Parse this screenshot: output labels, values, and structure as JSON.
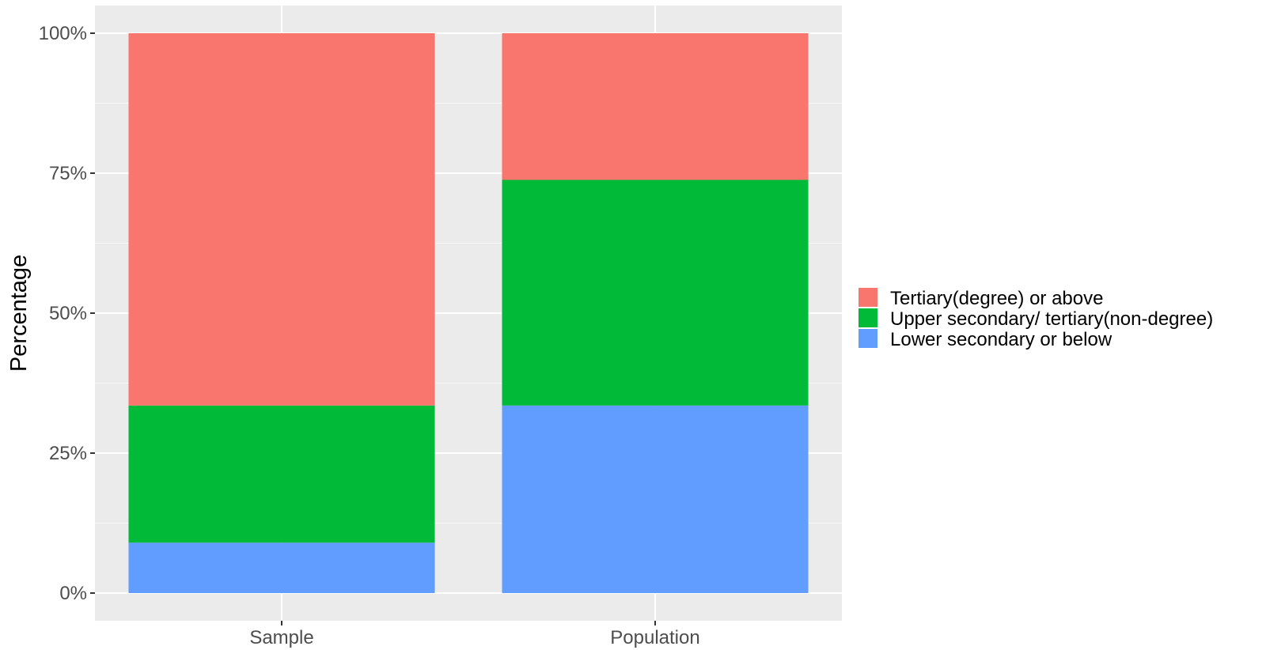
{
  "chart_data": {
    "type": "bar",
    "stacked": true,
    "title": "",
    "xlabel": "",
    "ylabel": "Percentage",
    "ylim": [
      0,
      1
    ],
    "y_ticks": [
      {
        "value": 0,
        "label": "0%"
      },
      {
        "value": 0.25,
        "label": "25%"
      },
      {
        "value": 0.5,
        "label": "50%"
      },
      {
        "value": 0.75,
        "label": "75%"
      },
      {
        "value": 1,
        "label": "100%"
      }
    ],
    "categories": [
      "Sample",
      "Population"
    ],
    "series": [
      {
        "name": "Lower secondary or below",
        "color": "#619CFF",
        "values": [
          0.09,
          0.335
        ]
      },
      {
        "name": "Upper secondary/ tertiary(non-degree)",
        "color": "#00BA38",
        "values": [
          0.245,
          0.403
        ]
      },
      {
        "name": "Tertiary(degree) or above",
        "color": "#F8766D",
        "values": [
          0.665,
          0.262
        ]
      }
    ],
    "legend": {
      "position": "right",
      "order": [
        "Tertiary(degree) or above",
        "Upper secondary/ tertiary(non-degree)",
        "Lower secondary or below"
      ]
    },
    "grid": true,
    "panel_background": "#EBEBEB"
  }
}
